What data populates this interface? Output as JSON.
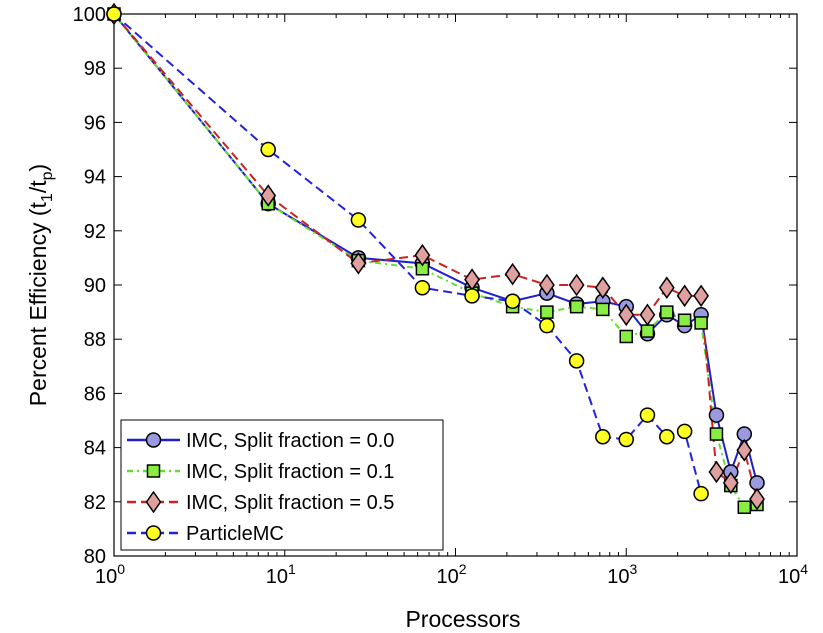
{
  "chart_data": {
    "type": "line",
    "xscale": "log",
    "xlim": [
      1,
      10000
    ],
    "ylim": [
      80,
      100
    ],
    "xlabel": "Processors",
    "ylabel": "Percent Efficiency (t",
    "ylabel_sub1": "1",
    "ylabel_mid": "/t",
    "ylabel_sub2": "p",
    "ylabel_end": ")",
    "x_ticks": [
      {
        "value": 1,
        "base": "10",
        "exp": "0"
      },
      {
        "value": 10,
        "base": "10",
        "exp": "1"
      },
      {
        "value": 100,
        "base": "10",
        "exp": "2"
      },
      {
        "value": 1000,
        "base": "10",
        "exp": "3"
      },
      {
        "value": 10000,
        "base": "10",
        "exp": "4"
      }
    ],
    "y_ticks": [
      80,
      82,
      84,
      86,
      88,
      90,
      92,
      94,
      96,
      98,
      100
    ],
    "grid": false,
    "legend_position": "bottom-left",
    "series": [
      {
        "name": "IMC, Split fraction = 0.0",
        "color": "#1f1fcc",
        "marker": "circle",
        "marker_fill": "#9a9ae0",
        "dash": "solid",
        "x": [
          1,
          8,
          27,
          64,
          125,
          216,
          343,
          512,
          729,
          1000,
          1331,
          1728,
          2197,
          2744,
          3375,
          4096,
          4913,
          5832
        ],
        "y": [
          100,
          93.0,
          91.0,
          90.8,
          89.9,
          89.4,
          89.7,
          89.3,
          89.4,
          89.2,
          88.2,
          88.9,
          88.5,
          88.9,
          85.2,
          83.1,
          84.5,
          82.7
        ]
      },
      {
        "name": "IMC, Split fraction = 0.1",
        "color": "#66dd33",
        "marker": "square",
        "marker_fill": "#88ee44",
        "dash": "dashdot",
        "x": [
          1,
          8,
          27,
          64,
          125,
          216,
          343,
          512,
          729,
          1000,
          1331,
          1728,
          2197,
          2744,
          3375,
          4096,
          4913,
          5832
        ],
        "y": [
          100,
          93.0,
          90.9,
          90.6,
          89.7,
          89.2,
          89.0,
          89.2,
          89.1,
          88.1,
          88.3,
          89.0,
          88.7,
          88.6,
          84.5,
          82.6,
          81.8,
          81.9
        ]
      },
      {
        "name": "IMC, Split fraction = 0.5",
        "color": "#cc2222",
        "marker": "diamond",
        "marker_fill": "#e0a0a0",
        "dash": "dashed",
        "x": [
          1,
          8,
          27,
          64,
          125,
          216,
          343,
          512,
          729,
          1000,
          1331,
          1728,
          2197,
          2744,
          3375,
          4096,
          4913,
          5832
        ],
        "y": [
          100,
          93.3,
          90.8,
          91.1,
          90.2,
          90.4,
          90.0,
          90.0,
          89.9,
          88.9,
          88.9,
          89.9,
          89.6,
          89.6,
          83.1,
          82.7,
          83.9,
          82.1
        ]
      },
      {
        "name": "ParticleMC",
        "color": "#2222dd",
        "marker": "circle",
        "marker_fill": "#ffff22",
        "dash": "dashed",
        "x": [
          1,
          8,
          27,
          64,
          125,
          216,
          343,
          512,
          729,
          1000,
          1331,
          1728,
          2197,
          2744
        ],
        "y": [
          100,
          95.0,
          92.4,
          89.9,
          89.6,
          89.4,
          88.5,
          87.2,
          84.4,
          84.3,
          85.2,
          84.4,
          84.6,
          82.3
        ]
      }
    ]
  }
}
